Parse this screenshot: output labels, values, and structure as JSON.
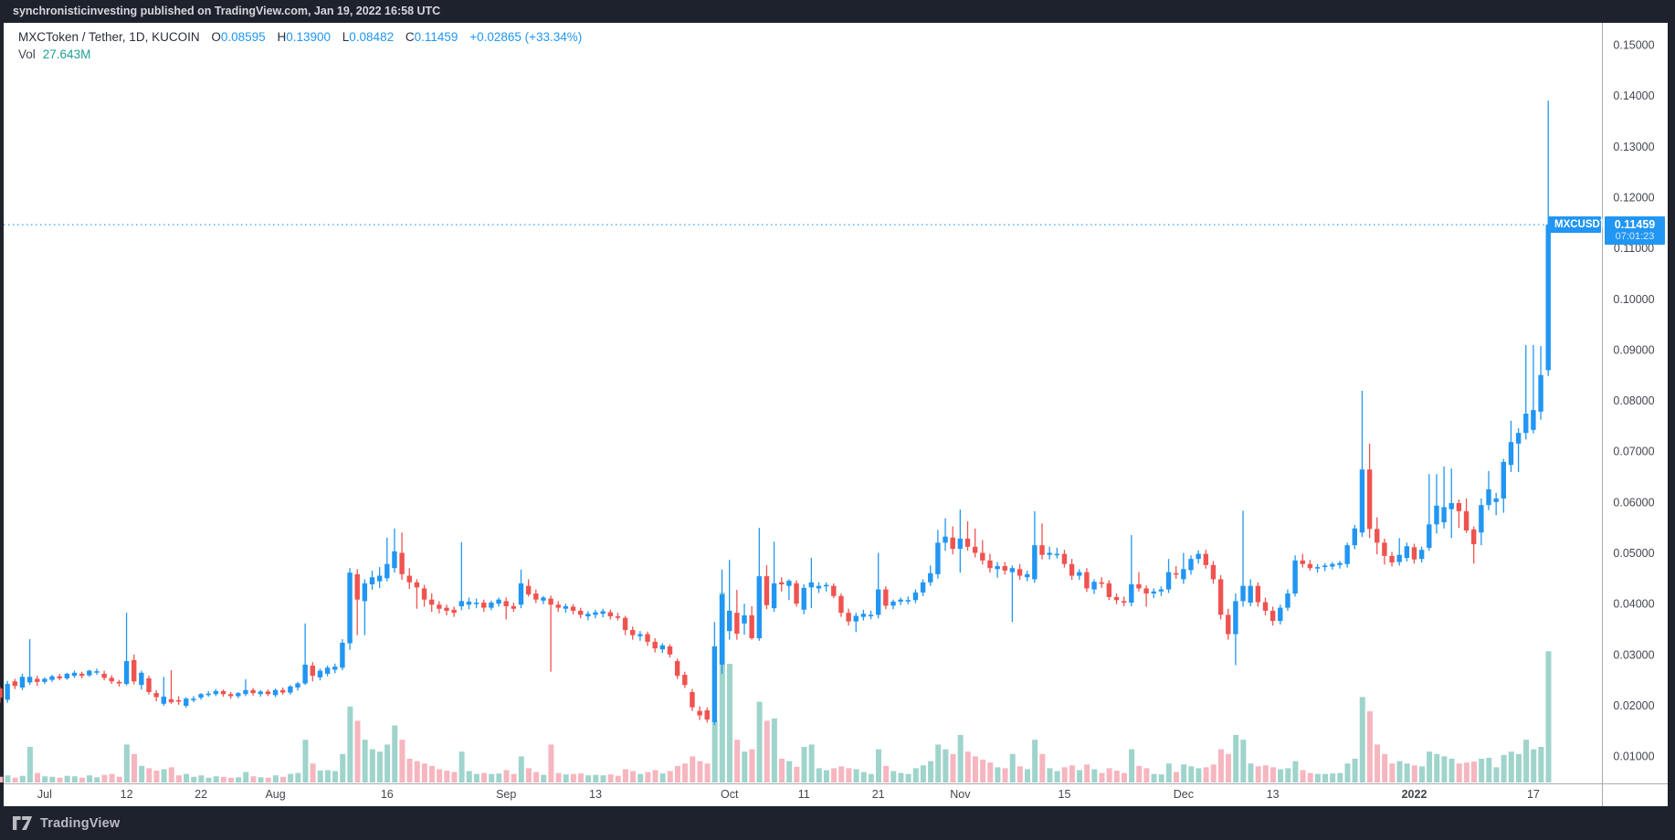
{
  "header": {
    "attribution": "synchronisticinvesting published on TradingView.com, Jan 19, 2022 16:58 UTC"
  },
  "legend": {
    "title": "MXCToken / Tether, 1D, KUCOIN",
    "ohlc": [
      {
        "k": "O",
        "v": "0.08595"
      },
      {
        "k": "H",
        "v": "0.13900"
      },
      {
        "k": "L",
        "v": "0.08482"
      },
      {
        "k": "C",
        "v": "0.11459"
      }
    ],
    "change": "+0.02865 (+33.34%)",
    "vol_label": "Vol",
    "vol_value": "27.643M"
  },
  "price_label": {
    "symbol": "MXCUSDT",
    "price": "0.11459",
    "countdown": "07:01:23"
  },
  "footer": {
    "brand": "TradingView"
  },
  "colors": {
    "up": "#2196f3",
    "down": "#ef5350",
    "vol_up": "#9fd4cc",
    "vol_down": "#f6b6bf",
    "axis_text": "#44474f",
    "label_bg": "#2196f3",
    "dark_bg": "#1e222d"
  },
  "chart_data": {
    "type": "candlestick",
    "symbol": "MXCUSDT",
    "exchange": "KUCOIN",
    "interval": "1D",
    "title": "MXCToken / Tether, 1D, KUCOIN",
    "ylim": [
      0.01,
      0.15
    ],
    "grid": false,
    "price_scale_divisor": 10000,
    "volume_unit": "millions",
    "last_price": 0.11459,
    "last_volume": 27.643,
    "countdown": "07:01:23",
    "y_axis_ticks": [
      "0.15000",
      "0.14000",
      "0.13000",
      "0.12000",
      "0.11000",
      "0.10000",
      "0.09000",
      "0.08000",
      "0.07000",
      "0.06000",
      "0.05000",
      "0.04000",
      "0.03000",
      "0.02000",
      "0.01000"
    ],
    "x_axis_ticks": [
      {
        "label": "Jul",
        "index": 6,
        "bold": false
      },
      {
        "label": "12",
        "index": 17,
        "bold": false
      },
      {
        "label": "22",
        "index": 27,
        "bold": false
      },
      {
        "label": "Aug",
        "index": 37,
        "bold": false
      },
      {
        "label": "16",
        "index": 52,
        "bold": false
      },
      {
        "label": "Sep",
        "index": 68,
        "bold": false
      },
      {
        "label": "13",
        "index": 80,
        "bold": false
      },
      {
        "label": "Oct",
        "index": 98,
        "bold": false
      },
      {
        "label": "11",
        "index": 108,
        "bold": false
      },
      {
        "label": "21",
        "index": 118,
        "bold": false
      },
      {
        "label": "Nov",
        "index": 129,
        "bold": false
      },
      {
        "label": "15",
        "index": 143,
        "bold": false
      },
      {
        "label": "Dec",
        "index": 159,
        "bold": false
      },
      {
        "label": "13",
        "index": 171,
        "bold": false
      },
      {
        "label": "2022",
        "index": 190,
        "bold": true
      },
      {
        "label": "17",
        "index": 206,
        "bold": false
      }
    ],
    "candles": [
      [
        233,
        236,
        205,
        215,
        1.2
      ],
      [
        211,
        248,
        205,
        242,
        1.5
      ],
      [
        247,
        252,
        232,
        238,
        1.0
      ],
      [
        235,
        262,
        230,
        256,
        1.4
      ],
      [
        245,
        330,
        240,
        256,
        7.5
      ],
      [
        252,
        258,
        238,
        246,
        2.0
      ],
      [
        246,
        255,
        242,
        252,
        1.3
      ],
      [
        250,
        260,
        246,
        257,
        1.2
      ],
      [
        257,
        262,
        249,
        253,
        1.0
      ],
      [
        253,
        264,
        250,
        262,
        1.4
      ],
      [
        258,
        268,
        254,
        264,
        1.3
      ],
      [
        262,
        266,
        253,
        258,
        1.0
      ],
      [
        259,
        270,
        256,
        268,
        1.5
      ],
      [
        265,
        272,
        260,
        267,
        1.1
      ],
      [
        262,
        268,
        249,
        254,
        1.6
      ],
      [
        254,
        259,
        242,
        247,
        1.8
      ],
      [
        246,
        250,
        237,
        243,
        1.2
      ],
      [
        242,
        382,
        239,
        287,
        8.0
      ],
      [
        289,
        300,
        241,
        247,
        6.0
      ],
      [
        240,
        268,
        231,
        264,
        3.5
      ],
      [
        253,
        258,
        221,
        226,
        3.0
      ],
      [
        224,
        230,
        208,
        216,
        2.5
      ],
      [
        203,
        256,
        199,
        217,
        2.8
      ],
      [
        212,
        269,
        203,
        206,
        3.2
      ],
      [
        210,
        218,
        201,
        208,
        1.5
      ],
      [
        199,
        216,
        195,
        213,
        1.8
      ],
      [
        210,
        218,
        206,
        213,
        1.2
      ],
      [
        215,
        224,
        211,
        222,
        1.5
      ],
      [
        222,
        228,
        217,
        223,
        1.0
      ],
      [
        222,
        232,
        218,
        228,
        1.3
      ],
      [
        228,
        231,
        217,
        222,
        1.2
      ],
      [
        222,
        226,
        213,
        218,
        1.0
      ],
      [
        218,
        226,
        214,
        224,
        1.1
      ],
      [
        222,
        251,
        218,
        230,
        2.2
      ],
      [
        230,
        234,
        219,
        224,
        1.3
      ],
      [
        222,
        230,
        217,
        227,
        1.1
      ],
      [
        227,
        231,
        218,
        222,
        1.0
      ],
      [
        220,
        233,
        216,
        230,
        1.5
      ],
      [
        230,
        235,
        221,
        225,
        1.2
      ],
      [
        225,
        240,
        221,
        237,
        1.8
      ],
      [
        235,
        246,
        229,
        243,
        2.0
      ],
      [
        243,
        361,
        240,
        280,
        9.0
      ],
      [
        278,
        285,
        247,
        258,
        4.0
      ],
      [
        255,
        272,
        249,
        268,
        2.5
      ],
      [
        262,
        278,
        257,
        274,
        2.6
      ],
      [
        270,
        282,
        263,
        276,
        2.4
      ],
      [
        274,
        330,
        269,
        323,
        6.0
      ],
      [
        322,
        470,
        309,
        461,
        16.0
      ],
      [
        458,
        468,
        338,
        408,
        13.0
      ],
      [
        405,
        448,
        338,
        440,
        9.0
      ],
      [
        438,
        465,
        427,
        452,
        7.0
      ],
      [
        444,
        472,
        431,
        455,
        6.5
      ],
      [
        450,
        530,
        444,
        478,
        8.0
      ],
      [
        470,
        548,
        461,
        503,
        12.0
      ],
      [
        500,
        540,
        447,
        458,
        9.0
      ],
      [
        455,
        470,
        429,
        442,
        5.0
      ],
      [
        442,
        448,
        390,
        432,
        4.5
      ],
      [
        430,
        437,
        394,
        408,
        4.0
      ],
      [
        408,
        420,
        384,
        398,
        3.5
      ],
      [
        398,
        405,
        381,
        390,
        2.8
      ],
      [
        392,
        398,
        377,
        386,
        2.5
      ],
      [
        388,
        394,
        374,
        382,
        2.2
      ],
      [
        395,
        521,
        387,
        405,
        6.5
      ],
      [
        398,
        412,
        389,
        404,
        2.4
      ],
      [
        400,
        410,
        391,
        402,
        1.8
      ],
      [
        402,
        408,
        384,
        392,
        2.0
      ],
      [
        392,
        406,
        387,
        402,
        1.8
      ],
      [
        400,
        412,
        394,
        408,
        1.9
      ],
      [
        405,
        412,
        369,
        395,
        2.6
      ],
      [
        395,
        402,
        384,
        390,
        1.8
      ],
      [
        398,
        467,
        391,
        440,
        5.5
      ],
      [
        435,
        448,
        414,
        418,
        3.0
      ],
      [
        420,
        428,
        401,
        408,
        2.2
      ],
      [
        406,
        415,
        399,
        412,
        1.6
      ],
      [
        410,
        416,
        266,
        398,
        8.0
      ],
      [
        398,
        405,
        384,
        392,
        2.0
      ],
      [
        390,
        400,
        382,
        395,
        1.7
      ],
      [
        394,
        399,
        379,
        386,
        1.8
      ],
      [
        386,
        392,
        371,
        378,
        1.9
      ],
      [
        375,
        385,
        367,
        380,
        1.5
      ],
      [
        378,
        388,
        371,
        383,
        1.6
      ],
      [
        380,
        390,
        373,
        385,
        1.5
      ],
      [
        383,
        388,
        369,
        375,
        1.7
      ],
      [
        375,
        382,
        367,
        372,
        1.4
      ],
      [
        372,
        376,
        338,
        348,
        2.8
      ],
      [
        348,
        355,
        329,
        338,
        2.4
      ],
      [
        336,
        346,
        327,
        340,
        1.8
      ],
      [
        340,
        345,
        317,
        325,
        2.2
      ],
      [
        325,
        332,
        304,
        312,
        2.6
      ],
      [
        310,
        322,
        303,
        318,
        1.9
      ],
      [
        316,
        320,
        294,
        300,
        2.4
      ],
      [
        287,
        292,
        252,
        258,
        3.5
      ],
      [
        260,
        266,
        234,
        240,
        4.0
      ],
      [
        226,
        232,
        189,
        196,
        5.5
      ],
      [
        189,
        198,
        171,
        180,
        4.5
      ],
      [
        190,
        196,
        166,
        172,
        4.0
      ],
      [
        167,
        364,
        161,
        316,
        13.0
      ],
      [
        280,
        467,
        262,
        418,
        40.0
      ],
      [
        346,
        486,
        329,
        386,
        25.0
      ],
      [
        382,
        427,
        329,
        341,
        9.0
      ],
      [
        361,
        400,
        339,
        377,
        6.5
      ],
      [
        377,
        395,
        329,
        332,
        7.0
      ],
      [
        332,
        549,
        327,
        454,
        17.0
      ],
      [
        454,
        476,
        389,
        397,
        13.0
      ],
      [
        391,
        522,
        384,
        440,
        13.5
      ],
      [
        442,
        452,
        424,
        438,
        5.0
      ],
      [
        435,
        448,
        407,
        445,
        4.5
      ],
      [
        440,
        446,
        394,
        400,
        3.3
      ],
      [
        388,
        438,
        379,
        431,
        7.5
      ],
      [
        432,
        490,
        391,
        442,
        8.0
      ],
      [
        430,
        442,
        421,
        435,
        3.0
      ],
      [
        435,
        442,
        424,
        437,
        2.6
      ],
      [
        435,
        440,
        411,
        415,
        3.0
      ],
      [
        415,
        420,
        374,
        382,
        3.4
      ],
      [
        382,
        390,
        357,
        365,
        3.0
      ],
      [
        365,
        382,
        344,
        376,
        2.8
      ],
      [
        374,
        388,
        367,
        380,
        2.2
      ],
      [
        378,
        386,
        369,
        378,
        1.8
      ],
      [
        378,
        500,
        371,
        428,
        7.0
      ],
      [
        428,
        434,
        389,
        396,
        3.5
      ],
      [
        396,
        408,
        389,
        404,
        2.4
      ],
      [
        404,
        412,
        397,
        408,
        2.0
      ],
      [
        406,
        414,
        399,
        407,
        1.8
      ],
      [
        407,
        428,
        401,
        422,
        3.0
      ],
      [
        422,
        448,
        415,
        442,
        3.6
      ],
      [
        442,
        475,
        435,
        460,
        4.5
      ],
      [
        458,
        545,
        449,
        520,
        8.0
      ],
      [
        520,
        568,
        504,
        532,
        7.0
      ],
      [
        530,
        552,
        497,
        508,
        6.0
      ],
      [
        508,
        585,
        461,
        528,
        10.0
      ],
      [
        528,
        562,
        504,
        512,
        6.5
      ],
      [
        512,
        548,
        491,
        500,
        5.5
      ],
      [
        500,
        525,
        477,
        485,
        4.8
      ],
      [
        485,
        498,
        461,
        470,
        4.2
      ],
      [
        468,
        482,
        451,
        474,
        3.2
      ],
      [
        474,
        482,
        457,
        465,
        3.0
      ],
      [
        462,
        475,
        364,
        470,
        6.0
      ],
      [
        468,
        478,
        447,
        455,
        3.4
      ],
      [
        452,
        465,
        444,
        458,
        2.8
      ],
      [
        448,
        582,
        441,
        515,
        9.0
      ],
      [
        515,
        558,
        487,
        496,
        6.0
      ],
      [
        496,
        512,
        487,
        500,
        3.0
      ],
      [
        498,
        510,
        489,
        498,
        2.4
      ],
      [
        498,
        506,
        471,
        478,
        3.2
      ],
      [
        478,
        488,
        447,
        455,
        3.6
      ],
      [
        455,
        468,
        447,
        462,
        2.6
      ],
      [
        462,
        470,
        423,
        430,
        3.8
      ],
      [
        428,
        448,
        419,
        443,
        2.8
      ],
      [
        442,
        452,
        431,
        440,
        2.0
      ],
      [
        440,
        446,
        407,
        413,
        3.0
      ],
      [
        413,
        420,
        399,
        407,
        2.5
      ],
      [
        405,
        414,
        395,
        402,
        2.0
      ],
      [
        402,
        535,
        395,
        438,
        7.0
      ],
      [
        438,
        462,
        424,
        430,
        3.5
      ],
      [
        430,
        436,
        394,
        420,
        3.0
      ],
      [
        420,
        430,
        411,
        424,
        1.8
      ],
      [
        424,
        434,
        415,
        428,
        1.7
      ],
      [
        428,
        488,
        421,
        462,
        4.0
      ],
      [
        460,
        474,
        449,
        458,
        2.2
      ],
      [
        448,
        500,
        439,
        468,
        3.8
      ],
      [
        466,
        495,
        457,
        488,
        3.4
      ],
      [
        488,
        505,
        479,
        498,
        3.0
      ],
      [
        498,
        506,
        469,
        476,
        3.2
      ],
      [
        476,
        484,
        439,
        448,
        3.8
      ],
      [
        448,
        456,
        369,
        378,
        7.0
      ],
      [
        378,
        390,
        329,
        340,
        6.0
      ],
      [
        340,
        420,
        279,
        405,
        10.0
      ],
      [
        405,
        583,
        394,
        435,
        9.0
      ],
      [
        402,
        448,
        395,
        435,
        4.0
      ],
      [
        435,
        442,
        394,
        403,
        3.4
      ],
      [
        403,
        412,
        377,
        386,
        3.6
      ],
      [
        386,
        394,
        357,
        366,
        3.2
      ],
      [
        366,
        398,
        359,
        392,
        2.8
      ],
      [
        392,
        428,
        386,
        420,
        3.0
      ],
      [
        420,
        495,
        414,
        485,
        4.5
      ],
      [
        485,
        498,
        471,
        478,
        2.6
      ],
      [
        478,
        486,
        465,
        470,
        2.0
      ],
      [
        470,
        478,
        461,
        472,
        1.8
      ],
      [
        472,
        480,
        464,
        475,
        1.8
      ],
      [
        473,
        482,
        467,
        478,
        1.9
      ],
      [
        476,
        484,
        469,
        480,
        2.0
      ],
      [
        478,
        520,
        471,
        515,
        4.0
      ],
      [
        515,
        555,
        507,
        548,
        5.0
      ],
      [
        540,
        819,
        531,
        664,
        18.0
      ],
      [
        664,
        715,
        529,
        547,
        15.0
      ],
      [
        547,
        570,
        497,
        520,
        8.0
      ],
      [
        520,
        528,
        477,
        494,
        6.0
      ],
      [
        494,
        502,
        473,
        481,
        4.0
      ],
      [
        482,
        529,
        475,
        496,
        4.5
      ],
      [
        490,
        520,
        483,
        513,
        4.0
      ],
      [
        511,
        518,
        479,
        487,
        3.6
      ],
      [
        488,
        512,
        481,
        506,
        3.4
      ],
      [
        510,
        655,
        504,
        556,
        6.5
      ],
      [
        556,
        655,
        538,
        593,
        6.0
      ],
      [
        560,
        670,
        548,
        590,
        5.5
      ],
      [
        586,
        666,
        529,
        598,
        5.0
      ],
      [
        598,
        605,
        549,
        582,
        4.0
      ],
      [
        582,
        607,
        539,
        544,
        4.2
      ],
      [
        546,
        552,
        479,
        517,
        4.4
      ],
      [
        540,
        607,
        515,
        594,
        5.0
      ],
      [
        594,
        661,
        584,
        625,
        5.2
      ],
      [
        600,
        618,
        574,
        607,
        3.2
      ],
      [
        607,
        685,
        579,
        679,
        5.8
      ],
      [
        673,
        760,
        659,
        718,
        6.5
      ],
      [
        715,
        745,
        659,
        736,
        6.0
      ],
      [
        736,
        909,
        723,
        774,
        9.0
      ],
      [
        742,
        909,
        735,
        781,
        7.0
      ],
      [
        778,
        907,
        762,
        850,
        7.5
      ],
      [
        859.5,
        1390,
        848.2,
        1145.9,
        27.643
      ]
    ]
  }
}
